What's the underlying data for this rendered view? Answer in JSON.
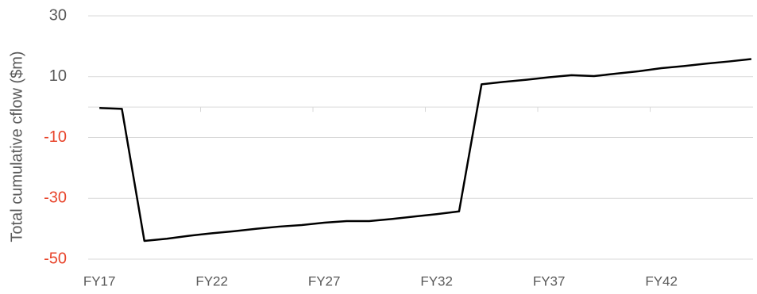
{
  "chart_data": {
    "type": "line",
    "y_label": "Total cumulative cflow ($m)",
    "categories": [
      "FY17",
      null,
      null,
      null,
      null,
      "FY22",
      null,
      null,
      null,
      null,
      "FY27",
      null,
      null,
      null,
      null,
      "FY32",
      null,
      null,
      null,
      null,
      "FY37",
      null,
      null,
      null,
      null,
      "FY42",
      null,
      null,
      null,
      null
    ],
    "series": [
      {
        "name": "Total cumulative cflow",
        "color": "#000000",
        "values": [
          -0.3,
          -0.6,
          -44,
          -43.3,
          -42.3,
          -41.5,
          -40.8,
          -40,
          -39.3,
          -38.8,
          -38,
          -37.5,
          -37.5,
          -36.8,
          -36,
          -35.2,
          -34.3,
          7.5,
          8.3,
          9,
          9.8,
          10.5,
          10.2,
          11,
          11.8,
          12.8,
          13.5,
          14.3,
          15,
          15.8
        ]
      }
    ],
    "ylim": [
      -50,
      30
    ],
    "yticks": [
      -50,
      -30,
      -10,
      10,
      30
    ],
    "grid": true,
    "negative_tick_color": "#e8452c",
    "tick_color": "#595959"
  }
}
